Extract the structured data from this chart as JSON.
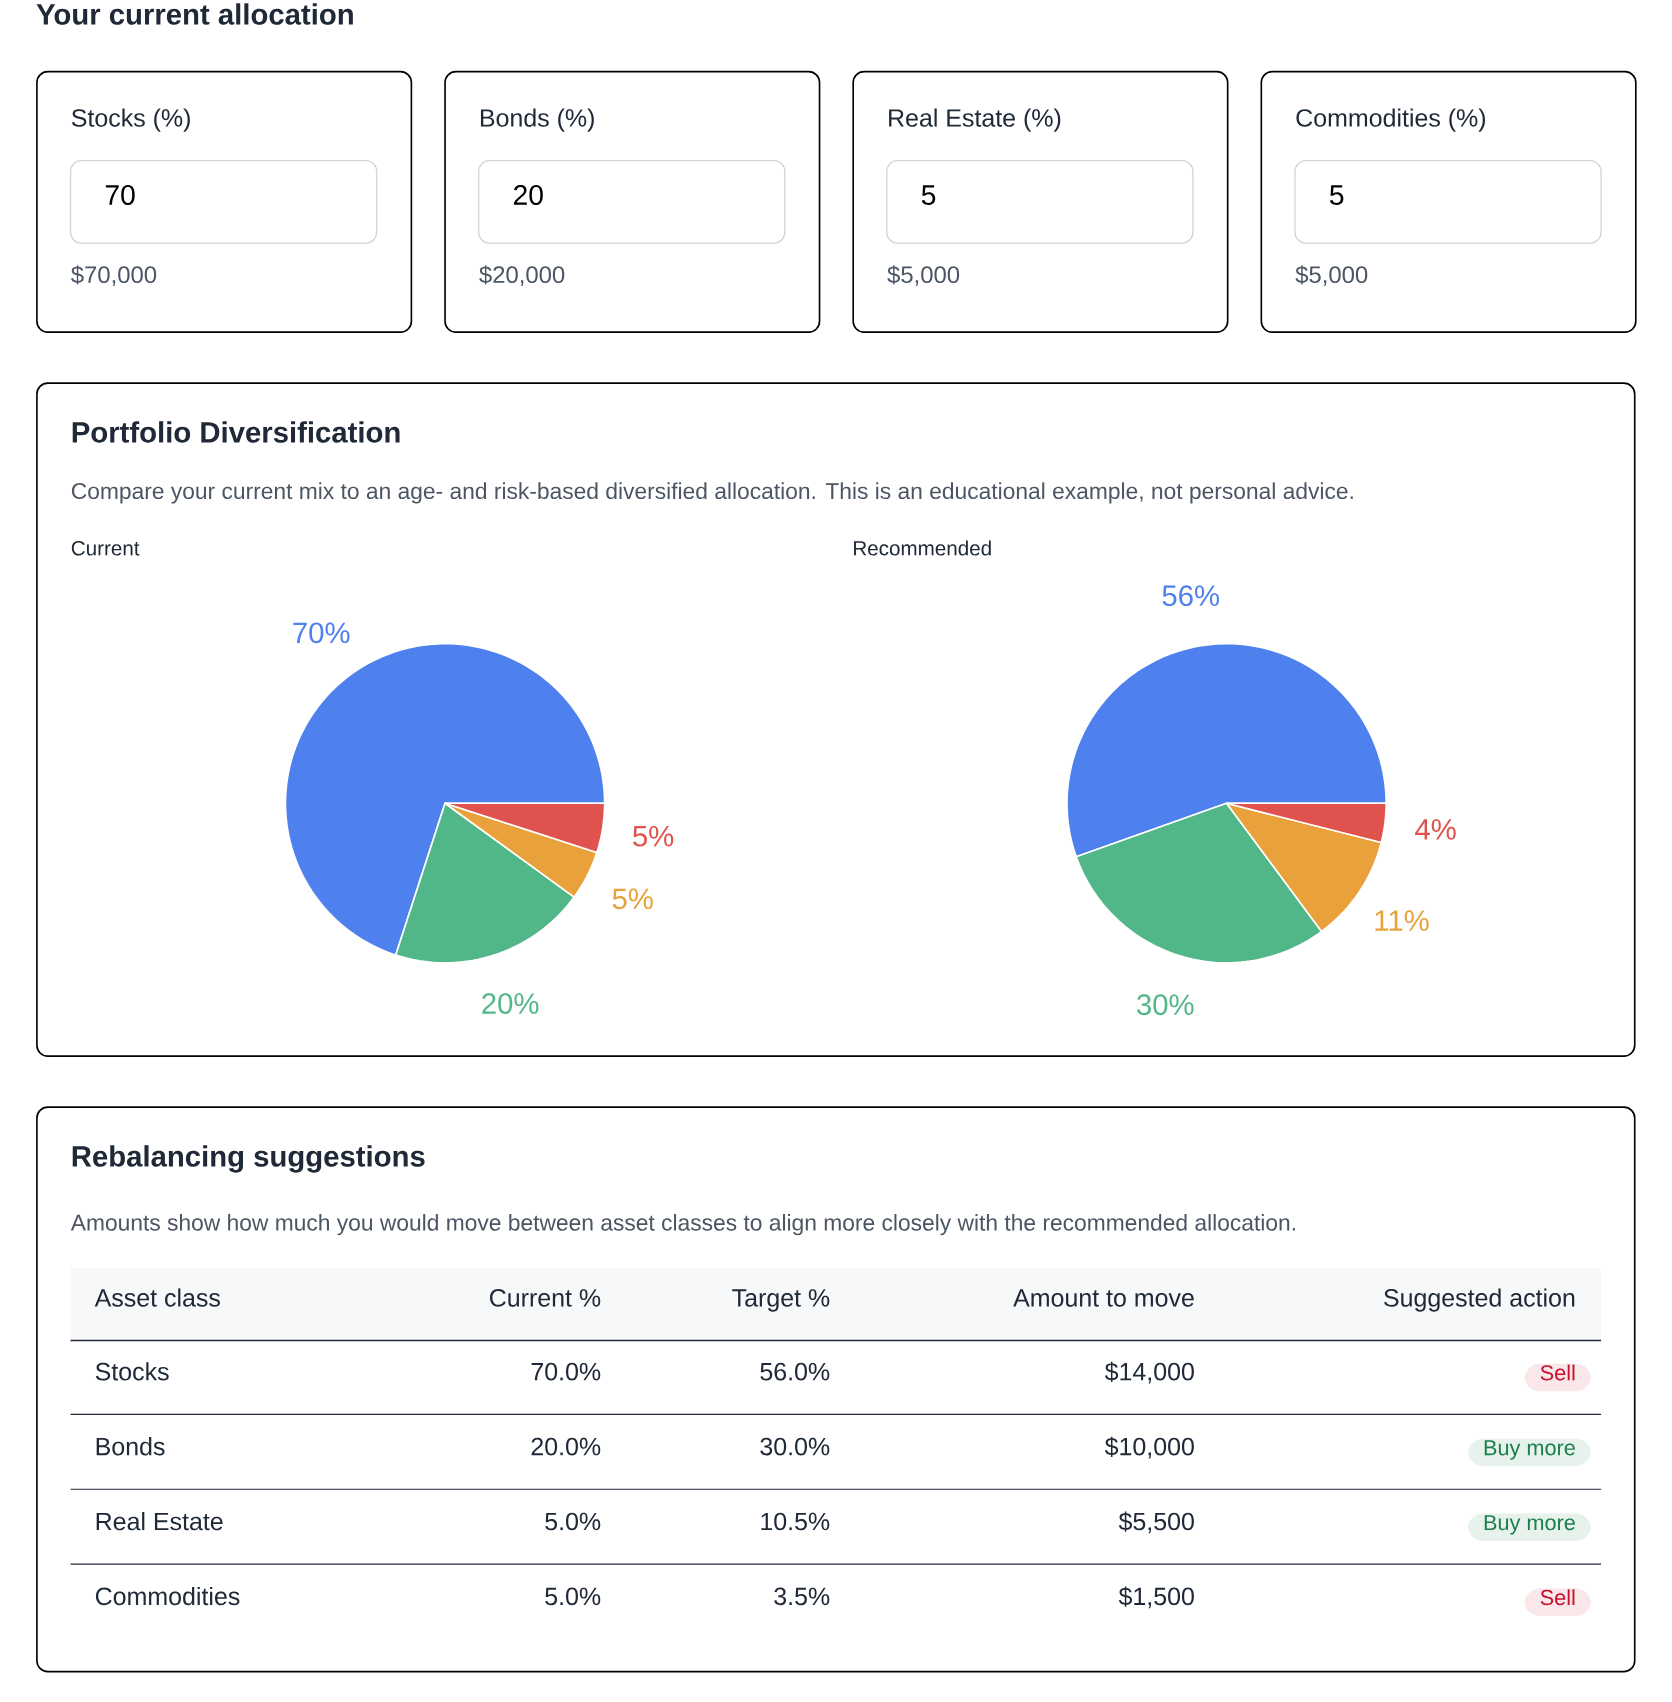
{
  "chart_data": [
    {
      "type": "other",
      "title": "Your current allocation",
      "categories": [
        "Stocks (%)",
        "Bonds (%)",
        "Real Estate (%)",
        "Commodities (%)"
      ],
      "annotations": [
        "70",
        "$70,000",
        "20",
        "$20,000",
        "5",
        "$5,000",
        "5",
        "$5,000"
      ]
    },
    {
      "type": "other",
      "title": "Portfolio Diversification",
      "subtitle": "Compare your current mix to an age- and risk-based diversified allocation. This is an educational example, not personal advice."
    },
    {
      "type": "pie",
      "title": "Current",
      "categories": [
        null,
        null,
        null,
        null
      ],
      "values": [
        70,
        20,
        5,
        5
      ],
      "value_labels": [
        "70%",
        "20%",
        "5%",
        "5%"
      ],
      "colors": [
        "#4e80ee",
        "#52b788",
        "#e9a23b",
        "#e0524d"
      ]
    },
    {
      "type": "pie",
      "title": "Recommended",
      "categories": [
        null,
        null,
        null,
        null
      ],
      "values": [
        56,
        30,
        11,
        4
      ],
      "value_labels": [
        "56%",
        "30%",
        "11%",
        "4%"
      ],
      "colors": [
        "#4e80ee",
        "#52b788",
        "#e9a23b",
        "#e0524d"
      ]
    },
    {
      "type": "other",
      "title": "Rebalancing suggestions",
      "subtitle": "Amounts show how much you would move between asset classes to align more closely with the recommended allocation.",
      "annotations": [
        "Asset class",
        "Current %",
        "Target %",
        "Amount to move",
        "Suggested action",
        "Stocks",
        "70.0%",
        "56.0%",
        "$14,000",
        "Sell",
        "Bonds",
        "20.0%",
        "30.0%",
        "$10,000",
        "Buy more",
        "Real Estate",
        "5.0%",
        "10.5%",
        "$5,500",
        "Buy more",
        "Commodities",
        "5.0%",
        "3.5%",
        "$1,500",
        "Sell"
      ],
      "colors": [
        "#c8102e",
        "#1a7f4b",
        "#1a7f4b",
        "#c8102e"
      ]
    }
  ]
}
